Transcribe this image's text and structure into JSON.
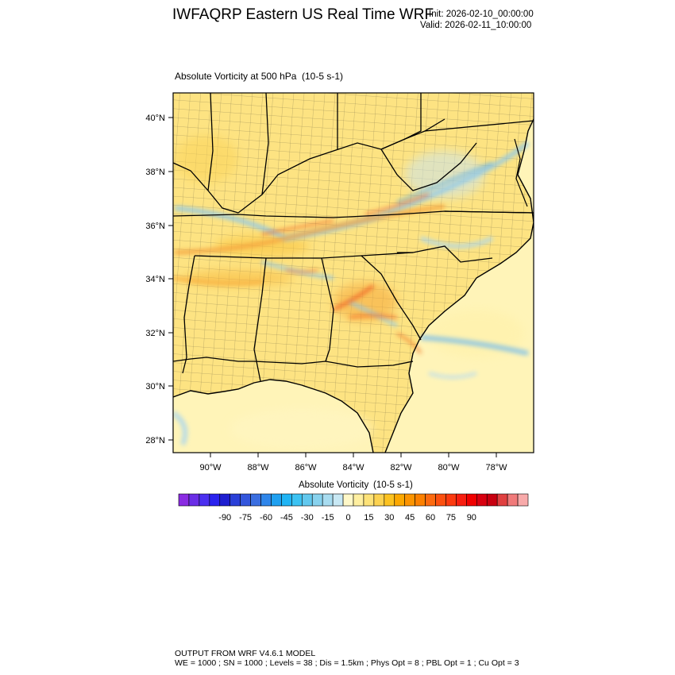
{
  "header": {
    "title": "IWFAQRP Eastern US Real Time WRF",
    "init": "Init: 2026-02-10_00:00:00",
    "valid": "Valid: 2026-02-11_10:00:00"
  },
  "plot": {
    "field_label": "Absolute Vorticity at 500 hPa",
    "field_units": "(10-5 s-1)",
    "lat_labels": [
      "40°N",
      "38°N",
      "36°N",
      "34°N",
      "32°N",
      "30°N",
      "28°N"
    ],
    "lon_labels": [
      "90°W",
      "88°W",
      "86°W",
      "84°W",
      "82°W",
      "80°W",
      "78°W"
    ]
  },
  "colorbar": {
    "title": "Absolute Vorticity",
    "units": "(10-5 s-1)",
    "tick_labels": [
      "-90",
      "-75",
      "-60",
      "-45",
      "-30",
      "-15",
      "0",
      "15",
      "30",
      "45",
      "60",
      "75",
      "90"
    ],
    "colors": [
      "#8a2be2",
      "#6a2de6",
      "#4b2ff0",
      "#2a22ee",
      "#1e1ed0",
      "#2a40d8",
      "#3356dc",
      "#3a6ee0",
      "#2f86ea",
      "#1fa0f0",
      "#20b4f4",
      "#3cc2f2",
      "#62c8ee",
      "#88d2ee",
      "#a8dcf0",
      "#c8e8f4",
      "#fff8c8",
      "#ffefa0",
      "#fde278",
      "#fcd250",
      "#fcc220",
      "#fca800",
      "#fc9400",
      "#fc8000",
      "#fc6a10",
      "#fc5010",
      "#fc3a10",
      "#f81e10",
      "#f00000",
      "#d80010",
      "#c80010",
      "#e04040",
      "#f07a7a",
      "#f8aaaa"
    ]
  },
  "footer": {
    "line1": "OUTPUT FROM WRF V4.6.1 MODEL",
    "line2": "WE = 1000 ; SN = 1000 ; Levels = 38 ; Dis = 1.5km ; Phys Opt = 8 ; PBL Opt = 1 ; Cu Opt = 3"
  },
  "colors": {
    "land_base": "#fde382",
    "ocean_base": "#fff4b8",
    "negative_streak": "#9fd0f0",
    "positive_streak": "#f7a23a"
  }
}
